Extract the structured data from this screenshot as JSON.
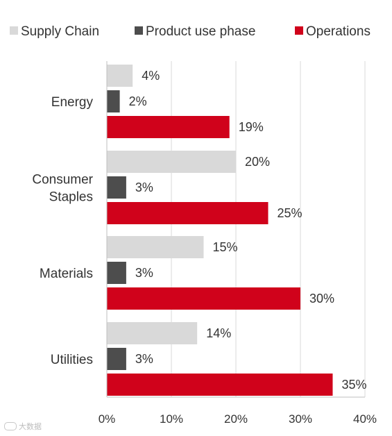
{
  "chart_data": {
    "type": "bar",
    "orientation": "horizontal",
    "categories": [
      "Energy",
      "Consumer Staples",
      "Materials",
      "Utilities"
    ],
    "category_lines": [
      [
        "Energy"
      ],
      [
        "Consumer",
        "Staples"
      ],
      [
        "Materials"
      ],
      [
        "Utilities"
      ]
    ],
    "series": [
      {
        "name": "Supply Chain",
        "color": "#d9d9d9",
        "values": [
          4,
          20,
          15,
          14
        ],
        "labels": [
          "4%",
          "20%",
          "15%",
          "14%"
        ]
      },
      {
        "name": "Product use phase",
        "color": "#4d4d4d",
        "values": [
          2,
          3,
          3,
          3
        ],
        "labels": [
          "2%",
          "3%",
          "3%",
          "3%"
        ]
      },
      {
        "name": "Operations",
        "color": "#d0021b",
        "values": [
          19,
          25,
          30,
          35
        ],
        "labels": [
          "19%",
          "25%",
          "30%",
          "35%"
        ]
      }
    ],
    "xlim": [
      0,
      40
    ],
    "xticks": [
      0,
      10,
      20,
      30,
      40
    ],
    "xtick_labels": [
      "0%",
      "10%",
      "20%",
      "30%",
      "40%"
    ],
    "grid": "vertical",
    "legend": "top"
  },
  "watermark": {
    "text": "大数据"
  }
}
